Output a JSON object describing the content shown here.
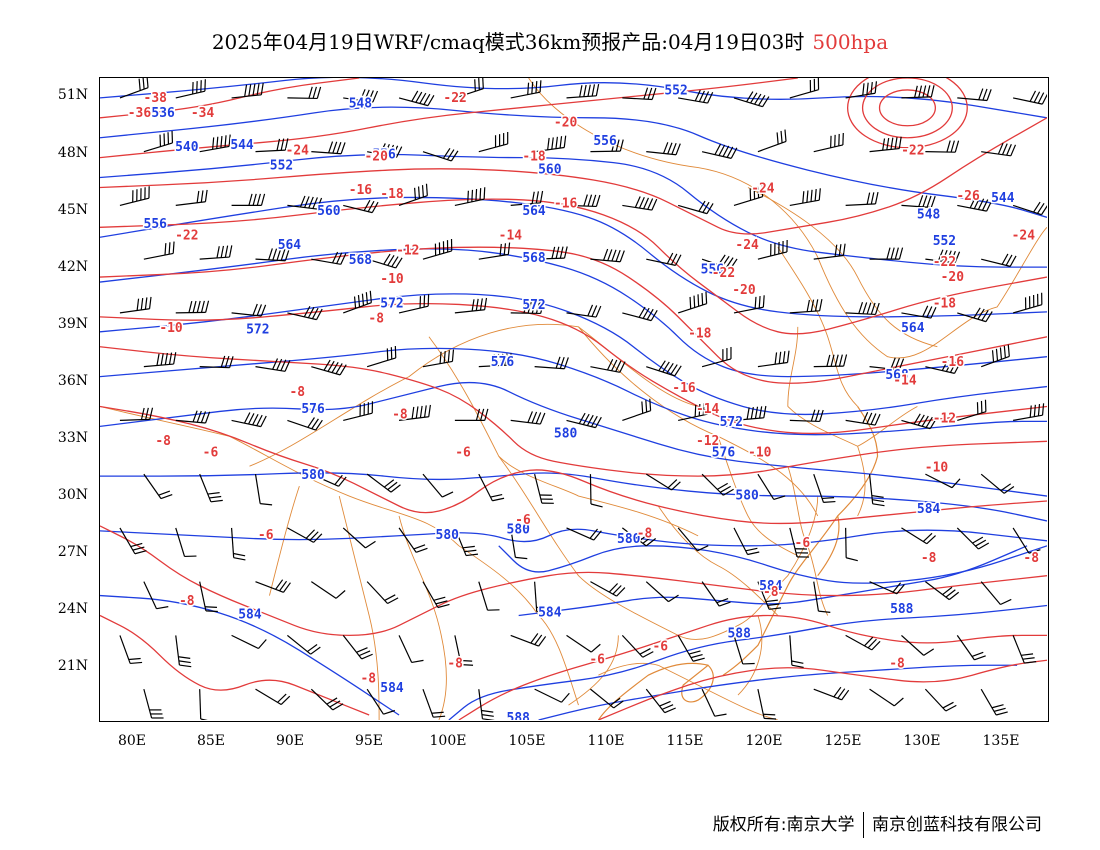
{
  "title": {
    "main": "2025年04月19日WRF/cmaq模式36km预报产品:04月19日03时",
    "level": "500hpa"
  },
  "axes": {
    "lat_labels": [
      "51N",
      "48N",
      "45N",
      "42N",
      "39N",
      "36N",
      "33N",
      "30N",
      "27N",
      "24N",
      "21N"
    ],
    "lon_labels": [
      "80E",
      "85E",
      "90E",
      "95E",
      "100E",
      "105E",
      "110E",
      "115E",
      "120E",
      "125E",
      "130E",
      "135E"
    ]
  },
  "colors": {
    "height_contour": "#1f3fe0",
    "temperature_contour": "#e23b3b",
    "border": "#e08a3a",
    "wind_barb": "#000000"
  },
  "footer": {
    "copyright": "版权所有:南京大学",
    "company": "南京创蓝科技有限公司"
  },
  "height_labels": [
    {
      "text": "536",
      "lon": 82,
      "lat": 50.3
    },
    {
      "text": "548",
      "lon": 94.5,
      "lat": 50.8
    },
    {
      "text": "552",
      "lon": 114.5,
      "lat": 51.5
    },
    {
      "text": "540",
      "lon": 83.5,
      "lat": 48.5
    },
    {
      "text": "544",
      "lon": 87,
      "lat": 48.6
    },
    {
      "text": "556",
      "lon": 96,
      "lat": 48.1
    },
    {
      "text": "552",
      "lon": 89.5,
      "lat": 47.5
    },
    {
      "text": "556",
      "lon": 110,
      "lat": 48.8
    },
    {
      "text": "560",
      "lon": 106.5,
      "lat": 47.3
    },
    {
      "text": "544",
      "lon": 135.2,
      "lat": 45.8
    },
    {
      "text": "560",
      "lon": 92.5,
      "lat": 45.1
    },
    {
      "text": "564",
      "lon": 105.5,
      "lat": 45.1
    },
    {
      "text": "548",
      "lon": 130.5,
      "lat": 44.9
    },
    {
      "text": "556",
      "lon": 81.5,
      "lat": 44.4
    },
    {
      "text": "552",
      "lon": 131.5,
      "lat": 43.5
    },
    {
      "text": "564",
      "lon": 90,
      "lat": 43.3
    },
    {
      "text": "568",
      "lon": 94.5,
      "lat": 42.5
    },
    {
      "text": "568",
      "lon": 105.5,
      "lat": 42.6
    },
    {
      "text": "556",
      "lon": 116.8,
      "lat": 42
    },
    {
      "text": "572",
      "lon": 96.5,
      "lat": 40.2
    },
    {
      "text": "572",
      "lon": 105.5,
      "lat": 40.1
    },
    {
      "text": "572",
      "lon": 88,
      "lat": 38.8
    },
    {
      "text": "564",
      "lon": 129.5,
      "lat": 38.9
    },
    {
      "text": "576",
      "lon": 103.5,
      "lat": 37.1
    },
    {
      "text": "568",
      "lon": 128.5,
      "lat": 36.4
    },
    {
      "text": "576",
      "lon": 91.5,
      "lat": 34.6
    },
    {
      "text": "572",
      "lon": 118,
      "lat": 33.9
    },
    {
      "text": "580",
      "lon": 107.5,
      "lat": 33.3
    },
    {
      "text": "576",
      "lon": 117.5,
      "lat": 32.3
    },
    {
      "text": "580",
      "lon": 91.5,
      "lat": 31.1
    },
    {
      "text": "580",
      "lon": 119,
      "lat": 30
    },
    {
      "text": "584",
      "lon": 130.5,
      "lat": 29.3
    },
    {
      "text": "580",
      "lon": 104.5,
      "lat": 28.2
    },
    {
      "text": "580",
      "lon": 100,
      "lat": 27.9
    },
    {
      "text": "580",
      "lon": 111.5,
      "lat": 27.7
    },
    {
      "text": "584",
      "lon": 120.5,
      "lat": 25.2
    },
    {
      "text": "584",
      "lon": 106.5,
      "lat": 23.8
    },
    {
      "text": "588",
      "lon": 128.8,
      "lat": 24
    },
    {
      "text": "584",
      "lon": 87.5,
      "lat": 23.7
    },
    {
      "text": "588",
      "lon": 118.5,
      "lat": 22.7
    },
    {
      "text": "584",
      "lon": 96.5,
      "lat": 19.8
    },
    {
      "text": "588",
      "lon": 104.5,
      "lat": 18.2
    }
  ],
  "temperature_labels": [
    {
      "text": "-38",
      "lon": 81.5,
      "lat": 51.1
    },
    {
      "text": "-36",
      "lon": 80.5,
      "lat": 50.3
    },
    {
      "text": "-34",
      "lon": 84.5,
      "lat": 50.3
    },
    {
      "text": "-22",
      "lon": 100.5,
      "lat": 51.1
    },
    {
      "text": "-20",
      "lon": 107.5,
      "lat": 49.8
    },
    {
      "text": "-24",
      "lon": 90.5,
      "lat": 48.3
    },
    {
      "text": "-22",
      "lon": 129.5,
      "lat": 48.3
    },
    {
      "text": "-20",
      "lon": 95.5,
      "lat": 48
    },
    {
      "text": "-18",
      "lon": 105.5,
      "lat": 48
    },
    {
      "text": "-24",
      "lon": 120,
      "lat": 46.3
    },
    {
      "text": "-16",
      "lon": 94.5,
      "lat": 46.2
    },
    {
      "text": "-18",
      "lon": 96.5,
      "lat": 46
    },
    {
      "text": "-26",
      "lon": 133,
      "lat": 45.9
    },
    {
      "text": "-16",
      "lon": 107.5,
      "lat": 45.5
    },
    {
      "text": "-14",
      "lon": 104,
      "lat": 43.8
    },
    {
      "text": "-22",
      "lon": 83.5,
      "lat": 43.8
    },
    {
      "text": "-24",
      "lon": 136.5,
      "lat": 43.8
    },
    {
      "text": "-24",
      "lon": 119,
      "lat": 43.3
    },
    {
      "text": "-12",
      "lon": 97.5,
      "lat": 43
    },
    {
      "text": "-22",
      "lon": 131.5,
      "lat": 42.4
    },
    {
      "text": "-22",
      "lon": 117.5,
      "lat": 41.8
    },
    {
      "text": "-10",
      "lon": 96.5,
      "lat": 41.5
    },
    {
      "text": "-20",
      "lon": 132,
      "lat": 41.6
    },
    {
      "text": "-20",
      "lon": 118.8,
      "lat": 40.9
    },
    {
      "text": "-18",
      "lon": 131.5,
      "lat": 40.2
    },
    {
      "text": "-8",
      "lon": 95.5,
      "lat": 39.4
    },
    {
      "text": "-18",
      "lon": 116,
      "lat": 38.6
    },
    {
      "text": "-10",
      "lon": 82.5,
      "lat": 38.9
    },
    {
      "text": "-16",
      "lon": 132,
      "lat": 37.1
    },
    {
      "text": "-14",
      "lon": 129,
      "lat": 36.1
    },
    {
      "text": "-16",
      "lon": 115,
      "lat": 35.7
    },
    {
      "text": "-8",
      "lon": 90.5,
      "lat": 35.5
    },
    {
      "text": "-14",
      "lon": 116.5,
      "lat": 34.6
    },
    {
      "text": "-8",
      "lon": 97,
      "lat": 34.3
    },
    {
      "text": "-12",
      "lon": 131.5,
      "lat": 34.1
    },
    {
      "text": "-8",
      "lon": 82,
      "lat": 32.9
    },
    {
      "text": "-12",
      "lon": 116.5,
      "lat": 32.9
    },
    {
      "text": "-10",
      "lon": 119.8,
      "lat": 32.3
    },
    {
      "text": "-6",
      "lon": 85,
      "lat": 32.3
    },
    {
      "text": "-6",
      "lon": 101,
      "lat": 32.3
    },
    {
      "text": "-10",
      "lon": 131,
      "lat": 31.5
    },
    {
      "text": "-6",
      "lon": 104.8,
      "lat": 28.7
    },
    {
      "text": "-6",
      "lon": 88.5,
      "lat": 27.9
    },
    {
      "text": "-8",
      "lon": 112.5,
      "lat": 28
    },
    {
      "text": "-6",
      "lon": 122.5,
      "lat": 27.5
    },
    {
      "text": "-8",
      "lon": 130.5,
      "lat": 26.7
    },
    {
      "text": "-8",
      "lon": 137,
      "lat": 26.7
    },
    {
      "text": "-8",
      "lon": 83.5,
      "lat": 24.4
    },
    {
      "text": "-8",
      "lon": 120.5,
      "lat": 24.9
    },
    {
      "text": "-6",
      "lon": 113.5,
      "lat": 22
    },
    {
      "text": "-6",
      "lon": 109.5,
      "lat": 21.3
    },
    {
      "text": "-8",
      "lon": 100.5,
      "lat": 21.1
    },
    {
      "text": "-8",
      "lon": 128.5,
      "lat": 21.1
    },
    {
      "text": "-8",
      "lon": 95,
      "lat": 20.3
    }
  ]
}
